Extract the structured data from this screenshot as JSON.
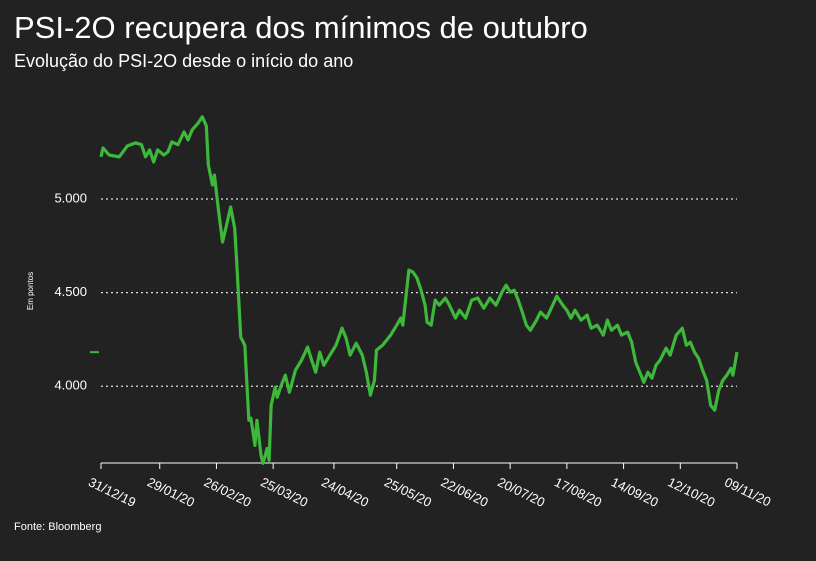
{
  "chart_data": {
    "type": "line",
    "title": "PSI-2O recupera dos mínimos de outubro",
    "subtitle": "Evolução do PSI-2O desde o início do ano",
    "y_label": "Em pontos",
    "source": "Fonte: Bloomberg",
    "x": [
      "31/12/19",
      "01/01/20",
      "04/01/20",
      "09/01/20",
      "13/01/20",
      "17/01/20",
      "20/01/20",
      "22/01/20",
      "24/01/20",
      "26/01/20",
      "28/01/20",
      "31/01/20",
      "02/02/20",
      "04/02/20",
      "07/02/20",
      "10/02/20",
      "12/02/20",
      "14/02/20",
      "17/02/20",
      "19/02/20",
      "21/02/20",
      "22/02/20",
      "24/02/20",
      "25/02/20",
      "27/02/20",
      "29/02/20",
      "02/03/20",
      "04/03/20",
      "06/03/20",
      "07/03/20",
      "09/03/20",
      "11/03/20",
      "13/03/20",
      "14/03/20",
      "16/03/20",
      "17/03/20",
      "19/03/20",
      "20/03/20",
      "22/03/20",
      "23/03/20",
      "24/03/20",
      "26/03/20",
      "27/03/20",
      "29/03/20",
      "31/03/20",
      "02/04/20",
      "05/04/20",
      "08/04/20",
      "11/04/20",
      "13/04/20",
      "15/04/20",
      "17/04/20",
      "19/04/20",
      "22/04/20",
      "25/04/20",
      "28/04/20",
      "30/04/20",
      "02/05/20",
      "05/05/20",
      "08/05/20",
      "10/05/20",
      "12/05/20",
      "14/05/20",
      "15/05/20",
      "18/05/20",
      "22/05/20",
      "25/05/20",
      "27/05/20",
      "28/05/20",
      "31/05/20",
      "02/06/20",
      "04/06/20",
      "06/06/20",
      "08/06/20",
      "09/06/20",
      "11/06/20",
      "13/06/20",
      "15/06/20",
      "18/06/20",
      "20/06/20",
      "23/06/20",
      "25/06/20",
      "28/06/20",
      "01/07/20",
      "04/07/20",
      "07/07/20",
      "10/07/20",
      "13/07/20",
      "16/07/20",
      "18/07/20",
      "20/07/20",
      "22/07/20",
      "24/07/20",
      "26/07/20",
      "28/07/20",
      "30/07/20",
      "02/08/20",
      "04/08/20",
      "07/08/20",
      "10/08/20",
      "12/08/20",
      "15/08/20",
      "17/08/20",
      "19/08/20",
      "21/08/20",
      "24/08/20",
      "27/08/20",
      "29/08/20",
      "01/09/20",
      "04/09/20",
      "06/09/20",
      "08/09/20",
      "11/09/20",
      "13/09/20",
      "16/09/20",
      "18/09/20",
      "20/09/20",
      "22/09/20",
      "24/09/20",
      "26/09/20",
      "28/09/20",
      "30/09/20",
      "02/10/20",
      "05/10/20",
      "07/10/20",
      "10/10/20",
      "13/10/20",
      "15/10/20",
      "17/10/20",
      "19/10/20",
      "21/10/20",
      "23/10/20",
      "25/10/20",
      "27/10/20",
      "29/10/20",
      "31/10/20",
      "02/11/20",
      "04/11/20",
      "06/11/20",
      "07/11/20",
      "09/11/20"
    ],
    "series": [
      {
        "name": "PSI-2O",
        "color": "#3db83a",
        "values": [
          5225,
          5273,
          5235,
          5225,
          5283,
          5300,
          5290,
          5225,
          5262,
          5198,
          5262,
          5235,
          5251,
          5305,
          5290,
          5358,
          5316,
          5369,
          5406,
          5439,
          5390,
          5182,
          5075,
          5128,
          4941,
          4770,
          4861,
          4957,
          4845,
          4663,
          4262,
          4219,
          3818,
          3829,
          3684,
          3818,
          3631,
          3588,
          3668,
          3604,
          3898,
          3995,
          3941,
          4005,
          4059,
          3968,
          4086,
          4139,
          4209,
          4139,
          4075,
          4182,
          4112,
          4166,
          4219,
          4310,
          4257,
          4166,
          4230,
          4166,
          4075,
          3952,
          4032,
          4193,
          4219,
          4273,
          4326,
          4364,
          4326,
          4620,
          4610,
          4578,
          4513,
          4433,
          4342,
          4326,
          4460,
          4433,
          4471,
          4433,
          4364,
          4406,
          4364,
          4460,
          4471,
          4417,
          4471,
          4433,
          4503,
          4540,
          4503,
          4513,
          4460,
          4396,
          4326,
          4299,
          4353,
          4396,
          4364,
          4433,
          4481,
          4433,
          4406,
          4364,
          4406,
          4353,
          4380,
          4310,
          4326,
          4273,
          4353,
          4299,
          4326,
          4273,
          4289,
          4235,
          4128,
          4075,
          4021,
          4075,
          4043,
          4112,
          4139,
          4203,
          4166,
          4273,
          4310,
          4219,
          4235,
          4182,
          4150,
          4086,
          4032,
          3898,
          3872,
          3979,
          4032,
          4059,
          4096,
          4059,
          4182
        ]
      }
    ],
    "xlim": [
      "31/12/19",
      "09/11/20"
    ],
    "xticks": [
      "31/12/19",
      "29/01/20",
      "26/02/20",
      "25/03/20",
      "24/04/20",
      "25/05/20",
      "22/06/20",
      "20/07/20",
      "17/08/20",
      "14/09/20",
      "12/10/20",
      "09/11/20"
    ],
    "ylim": [
      3590,
      5470
    ],
    "yticks": [
      {
        "value": 4000,
        "label": "4.000"
      },
      {
        "value": 4500,
        "label": "4.500"
      },
      {
        "value": 5000,
        "label": "5.000"
      }
    ],
    "grid": true
  }
}
